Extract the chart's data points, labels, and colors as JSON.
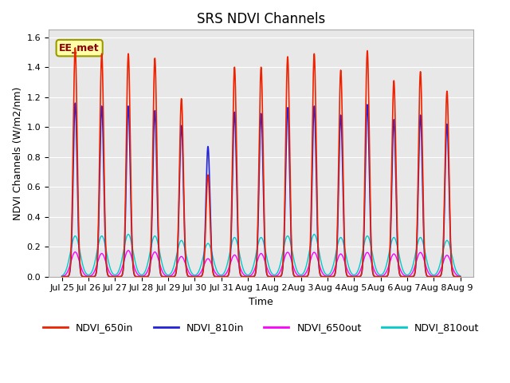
{
  "title": "SRS NDVI Channels",
  "xlabel": "Time",
  "ylabel": "NDVI Channels (W/m2/nm)",
  "annotation": "EE_met",
  "ylim": [
    0,
    1.65
  ],
  "xlim_start": -0.5,
  "xlim_end": 15.5,
  "background_color": "#e8e8e8",
  "grid_color": "white",
  "lines": {
    "NDVI_650in": {
      "color": "#ee2200",
      "lw": 1.2
    },
    "NDVI_810in": {
      "color": "#2222dd",
      "lw": 1.2
    },
    "NDVI_650out": {
      "color": "#ff00ff",
      "lw": 1.0
    },
    "NDVI_810out": {
      "color": "#00cccc",
      "lw": 1.0
    }
  },
  "peak_650in": [
    1.53,
    1.49,
    1.49,
    1.46,
    1.19,
    0.68,
    1.4,
    1.4,
    1.47,
    1.49,
    1.38,
    1.51,
    1.31,
    1.37,
    1.24
  ],
  "peak_810in": [
    1.16,
    1.14,
    1.14,
    1.11,
    1.01,
    0.87,
    1.1,
    1.09,
    1.13,
    1.14,
    1.08,
    1.15,
    1.05,
    1.08,
    1.02
  ],
  "peak_650out": [
    0.165,
    0.155,
    0.175,
    0.165,
    0.135,
    0.12,
    0.145,
    0.155,
    0.163,
    0.163,
    0.152,
    0.162,
    0.152,
    0.162,
    0.143
  ],
  "peak_810out": [
    0.272,
    0.272,
    0.283,
    0.272,
    0.242,
    0.222,
    0.262,
    0.262,
    0.272,
    0.283,
    0.262,
    0.272,
    0.262,
    0.262,
    0.242
  ],
  "xtick_labels": [
    "Jul 25",
    "Jul 26",
    "Jul 27",
    "Jul 28",
    "Jul 29",
    "Jul 30",
    "Jul 31",
    "Aug 1",
    "Aug 2",
    "Aug 3",
    "Aug 4",
    "Aug 5",
    "Aug 6",
    "Aug 7",
    "Aug 8",
    "Aug 9"
  ],
  "xtick_positions": [
    0,
    1,
    2,
    3,
    4,
    5,
    6,
    7,
    8,
    9,
    10,
    11,
    12,
    13,
    14,
    15
  ],
  "title_fontsize": 12,
  "label_fontsize": 9,
  "tick_fontsize": 8,
  "legend_fontsize": 9,
  "figwidth": 6.4,
  "figheight": 4.8,
  "dpi": 100
}
